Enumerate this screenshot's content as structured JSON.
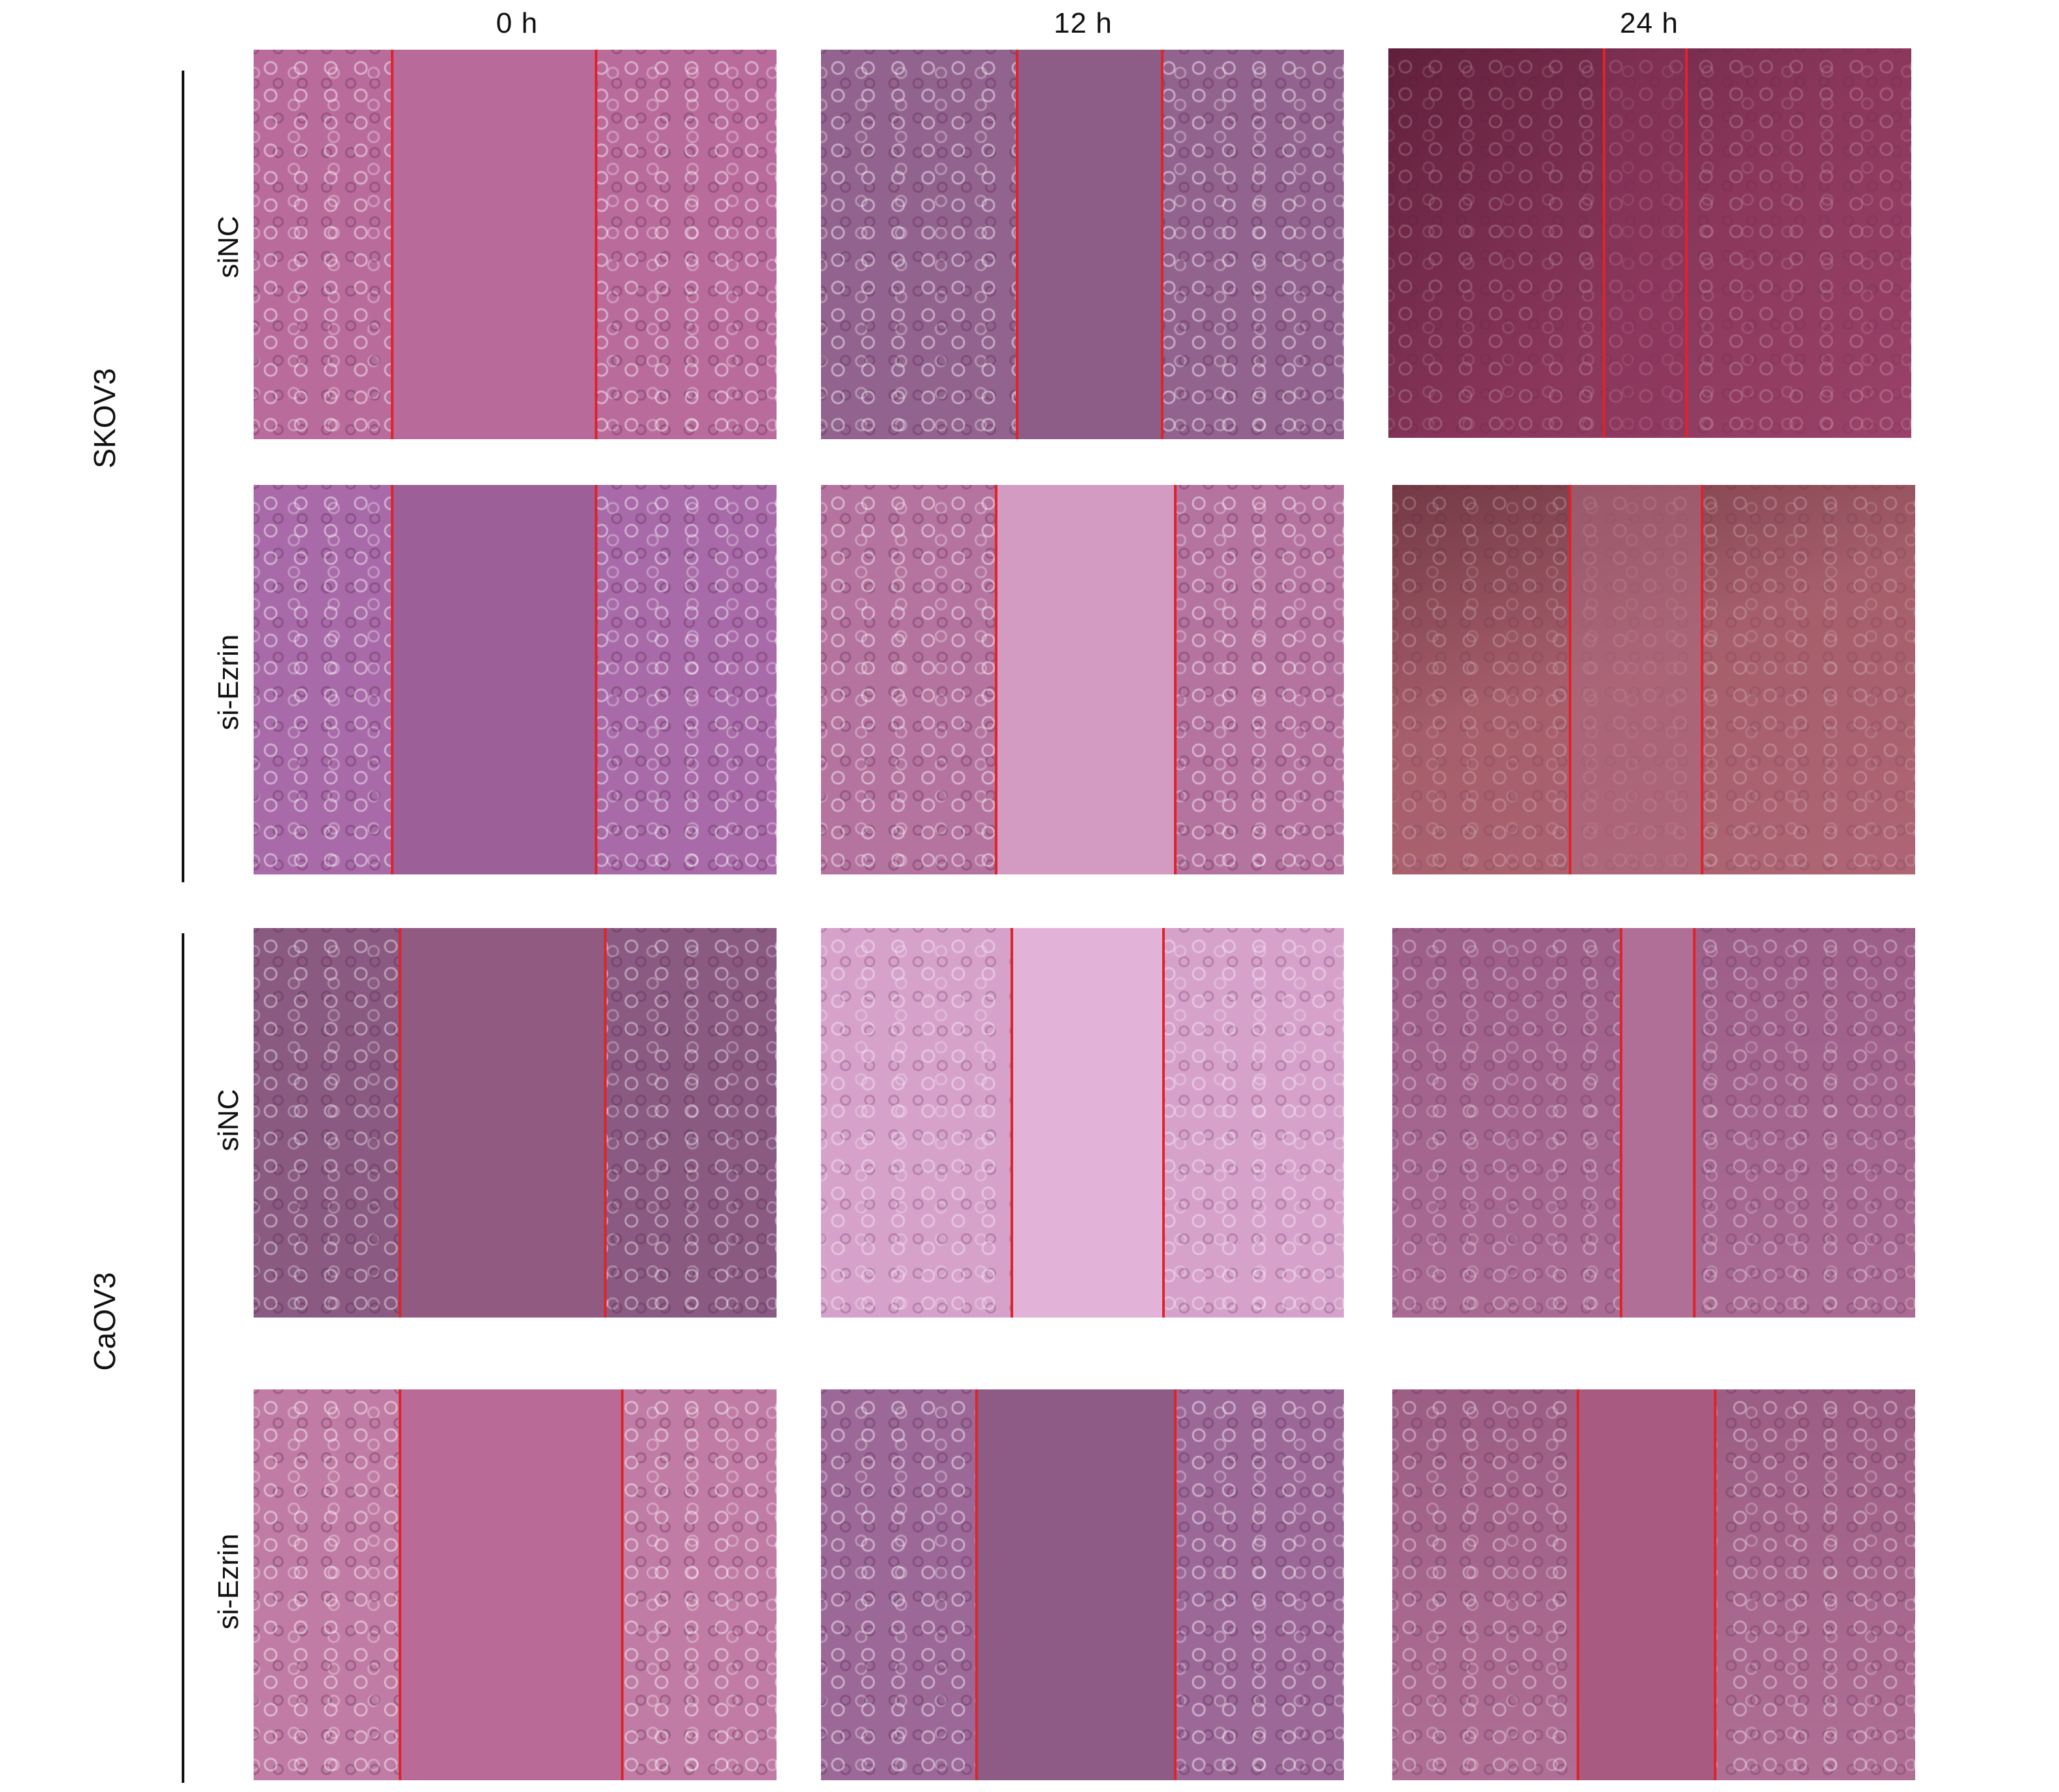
{
  "columns": [
    "0 h",
    "12 h",
    "24 h"
  ],
  "groups": [
    {
      "label": "SKOV3",
      "rows": [
        "siNC",
        "si-Ezrin"
      ]
    },
    {
      "label": "CaOV3",
      "rows": [
        "siNC",
        "si-Ezrin"
      ]
    }
  ],
  "wound_edge_color": "#e0232a",
  "panel_colors": {
    "skov3_sinc_0h": "#b96c9c",
    "skov3_sinc_12h": "#93638f",
    "skov3_sinc_24h": "#8e3a5e",
    "skov3_siezrin_0h": "#9c5f98",
    "skov3_siezrin_12h": "#c98bb4",
    "skov3_siezrin_24h": "#a8606c",
    "caov3_sinc_0h": "#8e5578",
    "caov3_sinc_12h": "#d6a2cc",
    "caov3_sinc_24h": "#a6688f",
    "caov3_siezrin_0h": "#b96a97",
    "caov3_siezrin_12h": "#8e5a86",
    "caov3_siezrin_24h": "#a85a80"
  }
}
